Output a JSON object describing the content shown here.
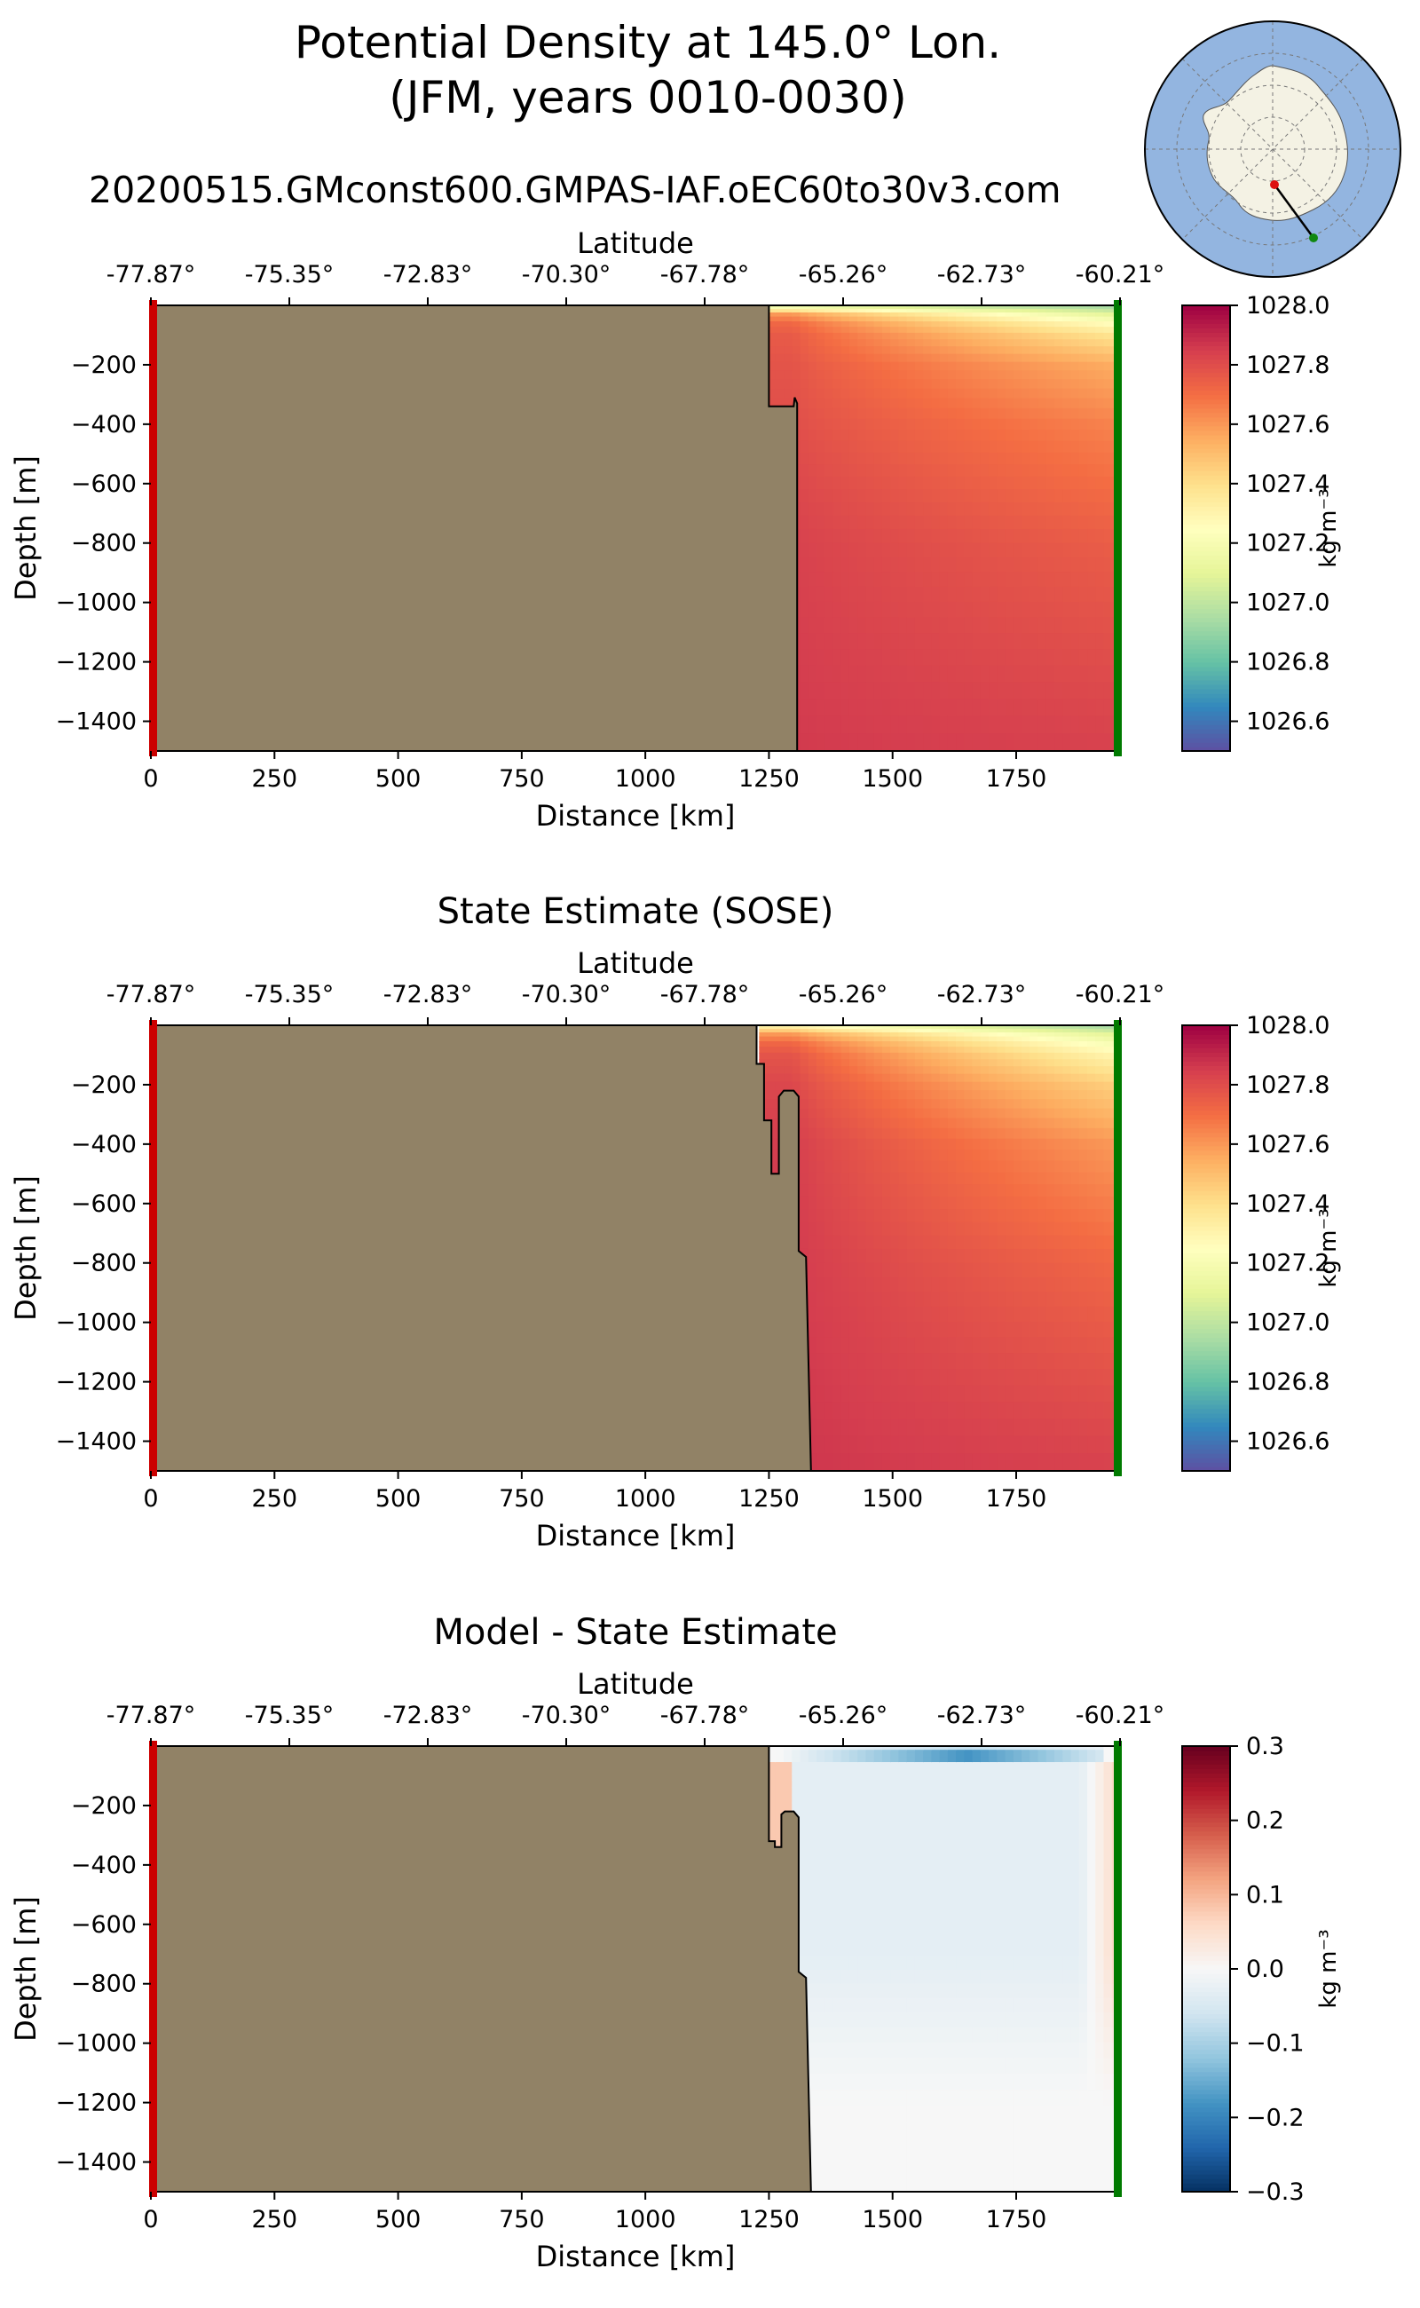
{
  "figure": {
    "title_line1": "Potential Density at 145.0° Lon.",
    "title_line2": "(JFM, years 0010-0030)",
    "run_name": "20200515.GMconst600.GMPAS-IAF.oEC60to30v3.com"
  },
  "colors": {
    "land": "#918266",
    "transect_start": "#cc0000",
    "transect_end": "#007a00",
    "ocean_inset": "#93b5e0",
    "antarctica_inset": "#f4f2e4"
  },
  "inset_map": {
    "description_icon": "antarctica-transect-icon",
    "start_marker_color": "#dd1111",
    "end_marker_color": "#118811"
  },
  "chart_data": [
    {
      "type": "heatmap",
      "title": "",
      "xlabel": "Distance [km]",
      "ylabel": "Depth [m]",
      "top_xlabel": "Latitude",
      "xlim": [
        0,
        1960
      ],
      "ylim": [
        -1500,
        0
      ],
      "xticks": [
        0,
        250,
        500,
        750,
        1000,
        1250,
        1500,
        1750
      ],
      "yticks": [
        -200,
        -400,
        -600,
        -800,
        -1000,
        -1200,
        -1400
      ],
      "top_ticks": [
        "-77.87°",
        "-75.35°",
        "-72.83°",
        "-70.30°",
        "-67.78°",
        "-65.26°",
        "-62.73°",
        "-60.21°"
      ],
      "colorbar": {
        "label": "kg m⁻³",
        "colormap": "Spectral_r",
        "vmin": 1026.5,
        "vmax": 1028.0,
        "ticks": [
          "1026.6",
          "1026.8",
          "1027.0",
          "1027.2",
          "1027.4",
          "1027.6",
          "1027.8",
          "1028.0"
        ],
        "tick_values": [
          1026.6,
          1026.8,
          1027.0,
          1027.2,
          1027.4,
          1027.6,
          1027.8,
          1028.0
        ]
      },
      "bathymetry": [
        [
          1250,
          0
        ],
        [
          1250,
          -340
        ],
        [
          1300,
          -340
        ],
        [
          1302,
          -310
        ],
        [
          1307,
          -330
        ],
        [
          1307,
          -1500
        ]
      ],
      "field_profile": {
        "depths": [
          0,
          -30,
          -60,
          -100,
          -200,
          -400,
          -800,
          -1500
        ],
        "shelf_break_values": [
          1027.05,
          1027.6,
          1027.72,
          1027.76,
          1027.78,
          1027.8,
          1027.84,
          1027.86
        ],
        "offshore_values": [
          1026.9,
          1027.1,
          1027.25,
          1027.38,
          1027.55,
          1027.65,
          1027.75,
          1027.84
        ]
      }
    },
    {
      "type": "heatmap",
      "title": "State Estimate (SOSE)",
      "xlabel": "Distance [km]",
      "ylabel": "Depth [m]",
      "top_xlabel": "Latitude",
      "xlim": [
        0,
        1960
      ],
      "ylim": [
        -1500,
        0
      ],
      "xticks": [
        0,
        250,
        500,
        750,
        1000,
        1250,
        1500,
        1750
      ],
      "yticks": [
        -200,
        -400,
        -600,
        -800,
        -1000,
        -1200,
        -1400
      ],
      "top_ticks": [
        "-77.87°",
        "-75.35°",
        "-72.83°",
        "-70.30°",
        "-67.78°",
        "-65.26°",
        "-62.73°",
        "-60.21°"
      ],
      "colorbar": {
        "label": "kg m⁻³",
        "colormap": "Spectral_r",
        "vmin": 1026.5,
        "vmax": 1028.0,
        "ticks": [
          "1026.6",
          "1026.8",
          "1027.0",
          "1027.2",
          "1027.4",
          "1027.6",
          "1027.8",
          "1028.0"
        ],
        "tick_values": [
          1026.6,
          1026.8,
          1027.0,
          1027.2,
          1027.4,
          1027.6,
          1027.8,
          1028.0
        ]
      },
      "bathymetry": [
        [
          1225,
          0
        ],
        [
          1225,
          -130
        ],
        [
          1240,
          -130
        ],
        [
          1240,
          -320
        ],
        [
          1255,
          -320
        ],
        [
          1255,
          -500
        ],
        [
          1270,
          -500
        ],
        [
          1270,
          -240
        ],
        [
          1280,
          -220
        ],
        [
          1300,
          -220
        ],
        [
          1310,
          -240
        ],
        [
          1310,
          -760
        ],
        [
          1325,
          -780
        ],
        [
          1335,
          -1500
        ]
      ],
      "field_profile": {
        "depths": [
          0,
          -30,
          -60,
          -100,
          -200,
          -400,
          -800,
          -1500
        ],
        "shelf_break_values": [
          1027.25,
          1027.6,
          1027.72,
          1027.78,
          1027.82,
          1027.85,
          1027.86,
          1027.87
        ],
        "offshore_values": [
          1026.9,
          1027.1,
          1027.2,
          1027.3,
          1027.45,
          1027.6,
          1027.72,
          1027.84
        ]
      }
    },
    {
      "type": "heatmap",
      "title": "Model - State Estimate",
      "xlabel": "Distance [km]",
      "ylabel": "Depth [m]",
      "top_xlabel": "Latitude",
      "xlim": [
        0,
        1960
      ],
      "ylim": [
        -1500,
        0
      ],
      "xticks": [
        0,
        250,
        500,
        750,
        1000,
        1250,
        1500,
        1750
      ],
      "yticks": [
        -200,
        -400,
        -600,
        -800,
        -1000,
        -1200,
        -1400
      ],
      "top_ticks": [
        "-77.87°",
        "-75.35°",
        "-72.83°",
        "-70.30°",
        "-67.78°",
        "-65.26°",
        "-62.73°",
        "-60.21°"
      ],
      "colorbar": {
        "label": "kg m⁻³",
        "colormap": "RdBu_r",
        "vmin": -0.3,
        "vmax": 0.3,
        "ticks": [
          "−0.3",
          "−0.2",
          "−0.1",
          "0.0",
          "0.1",
          "0.2",
          "0.3"
        ],
        "tick_values": [
          -0.3,
          -0.2,
          -0.1,
          0.0,
          0.1,
          0.2,
          0.3
        ]
      },
      "bathymetry": [
        [
          1250,
          0
        ],
        [
          1250,
          -320
        ],
        [
          1262,
          -320
        ],
        [
          1262,
          -340
        ],
        [
          1275,
          -340
        ],
        [
          1275,
          -230
        ],
        [
          1282,
          -220
        ],
        [
          1300,
          -220
        ],
        [
          1310,
          -240
        ],
        [
          1310,
          -760
        ],
        [
          1325,
          -780
        ],
        [
          1335,
          -1500
        ]
      ],
      "field_profile": {
        "surface_band": [
          [
            1270,
            0.0
          ],
          [
            1350,
            -0.05
          ],
          [
            1500,
            -0.12
          ],
          [
            1650,
            -0.18
          ],
          [
            1800,
            -0.12
          ],
          [
            1930,
            -0.05
          ]
        ],
        "interior_value": -0.03,
        "offshore_edge_value": 0.07
      }
    }
  ]
}
